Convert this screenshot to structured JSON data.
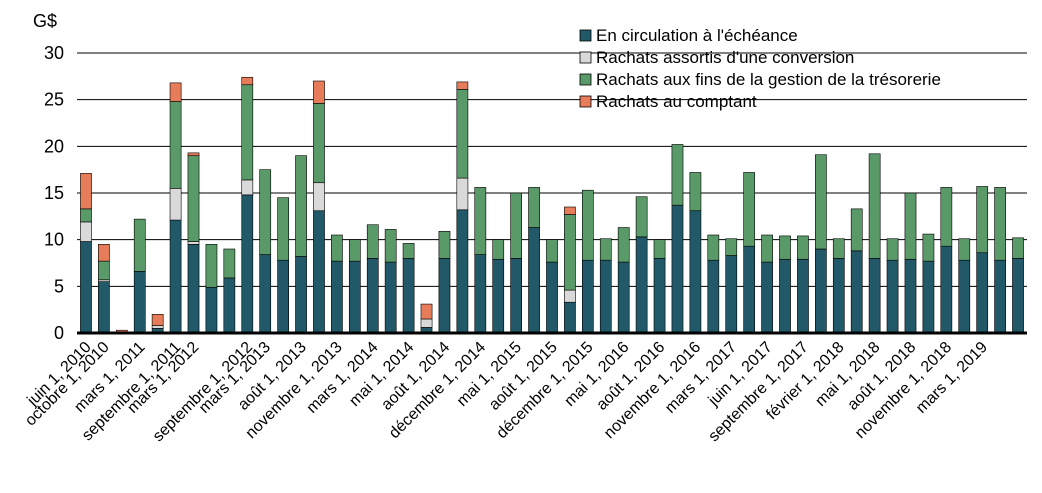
{
  "chart_data": {
    "type": "bar",
    "stacked": true,
    "unit": "G$",
    "ylim": [
      0,
      30
    ],
    "yticks": [
      0,
      5,
      10,
      15,
      20,
      25,
      30
    ],
    "grid": true,
    "legend_position": "top-right",
    "colors": [
      "#215968",
      "#d9d9d9",
      "#5a9a68",
      "#e67c5a"
    ],
    "tick_labels": [
      {
        "index": 0,
        "label": "juin 1, 2010"
      },
      {
        "index": 1,
        "label": "octobre 1, 2010"
      },
      {
        "index": 3,
        "label": "mars 1, 2011"
      },
      {
        "index": 5,
        "label": "septembre 1, 2011"
      },
      {
        "index": 6,
        "label": "mars 1, 2012"
      },
      {
        "index": 9,
        "label": "septembre 1, 2012"
      },
      {
        "index": 10,
        "label": "mars 1, 2013"
      },
      {
        "index": 12,
        "label": "août 1, 2013"
      },
      {
        "index": 14,
        "label": "novembre 1, 2013"
      },
      {
        "index": 16,
        "label": "mars 1, 2014"
      },
      {
        "index": 18,
        "label": "mai 1, 2014"
      },
      {
        "index": 20,
        "label": "août 1, 2014"
      },
      {
        "index": 22,
        "label": "décembre 1, 2014"
      },
      {
        "index": 24,
        "label": "mai 1, 2015"
      },
      {
        "index": 26,
        "label": "août 1, 2015"
      },
      {
        "index": 28,
        "label": "décembre 1, 2015"
      },
      {
        "index": 30,
        "label": "mai 1, 2016"
      },
      {
        "index": 32,
        "label": "août 1, 2016"
      },
      {
        "index": 34,
        "label": "novembre 1, 2016"
      },
      {
        "index": 36,
        "label": "mars 1, 2017"
      },
      {
        "index": 38,
        "label": "juin 1, 2017"
      },
      {
        "index": 40,
        "label": "septembre 1, 2017"
      },
      {
        "index": 42,
        "label": "février 1, 2018"
      },
      {
        "index": 44,
        "label": "mai 1, 2018"
      },
      {
        "index": 46,
        "label": "août 1, 2018"
      },
      {
        "index": 48,
        "label": "novembre 1, 2018"
      },
      {
        "index": 50,
        "label": "mars 1, 2019"
      }
    ],
    "series": [
      {
        "name": "En circulation à l'échéance",
        "values": [
          9.8,
          5.5,
          0.1,
          6.6,
          0.5,
          12.1,
          9.5,
          4.9,
          5.9,
          14.8,
          8.4,
          7.8,
          8.2,
          13.1,
          7.7,
          7.7,
          8.0,
          7.6,
          8.0,
          0.6,
          8.0,
          13.2,
          8.4,
          7.9,
          8.0,
          11.3,
          7.6,
          3.3,
          7.8,
          7.8,
          7.6,
          10.3,
          8.0,
          13.7,
          13.1,
          7.8,
          8.3,
          9.3,
          7.6,
          7.9,
          7.9,
          9.0,
          8.0,
          8.8,
          8.0,
          7.8,
          7.9,
          7.7,
          9.3,
          7.8,
          8.6,
          7.8,
          8.0
        ]
      },
      {
        "name": "Rachats assortis d'une conversion",
        "values": [
          2.1,
          0.2,
          0,
          0,
          0.3,
          3.4,
          0.3,
          0,
          0,
          1.6,
          0,
          0,
          0,
          3.0,
          0,
          0,
          0,
          0,
          0,
          0.9,
          0,
          3.4,
          0,
          0,
          0,
          0,
          0,
          1.3,
          0,
          0,
          0,
          0,
          0,
          0,
          0,
          0,
          0,
          0,
          0,
          0,
          0,
          0,
          0,
          0,
          0,
          0,
          0,
          0,
          0,
          0,
          0,
          0,
          0
        ]
      },
      {
        "name": "Rachats aux fins de la gestion de la trésorerie",
        "values": [
          1.4,
          2.0,
          0,
          5.6,
          0,
          9.3,
          9.2,
          4.6,
          3.1,
          10.2,
          9.1,
          6.7,
          10.8,
          8.5,
          2.8,
          2.3,
          3.6,
          3.5,
          1.6,
          0,
          2.9,
          9.5,
          7.2,
          2.1,
          7.0,
          4.3,
          2.4,
          8.1,
          7.5,
          2.3,
          3.7,
          4.3,
          2.0,
          6.5,
          4.1,
          2.7,
          1.8,
          7.9,
          2.9,
          2.5,
          2.5,
          10.1,
          2.1,
          4.5,
          11.2,
          2.3,
          7.1,
          2.9,
          6.3,
          2.3,
          7.1,
          7.8,
          2.2
        ]
      },
      {
        "name": "Rachats au comptant",
        "values": [
          3.8,
          1.8,
          0.2,
          0,
          1.2,
          2.0,
          0.3,
          0,
          0,
          0.8,
          0,
          0,
          0,
          2.4,
          0,
          0,
          0,
          0,
          0,
          1.6,
          0,
          0.8,
          0,
          0,
          0,
          0,
          0,
          0.8,
          0,
          0,
          0,
          0,
          0,
          0,
          0,
          0,
          0,
          0,
          0,
          0,
          0,
          0,
          0,
          0,
          0,
          0,
          0,
          0,
          0,
          0,
          0,
          0,
          0
        ]
      }
    ]
  }
}
